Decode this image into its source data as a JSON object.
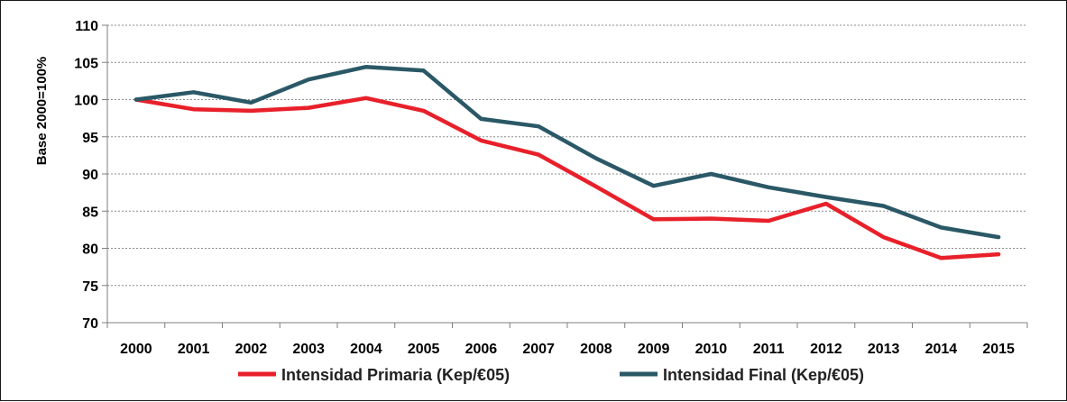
{
  "chart_data": {
    "type": "line",
    "title": "",
    "xlabel": "",
    "ylabel": "Base 2000=100%",
    "ylim": [
      70,
      110
    ],
    "yticks": [
      "70",
      "75",
      "80",
      "85",
      "90",
      "95",
      "100",
      "105",
      "110"
    ],
    "categories": [
      "2000",
      "2001",
      "2002",
      "2003",
      "2004",
      "2005",
      "2006",
      "2007",
      "2008",
      "2009",
      "2010",
      "2011",
      "2012",
      "2013",
      "2014",
      "2015"
    ],
    "grid": true,
    "legend_position": "bottom",
    "series": [
      {
        "name": "Intensidad Primaria (Kep/€05)",
        "color": "#e8202a",
        "values": [
          100.0,
          98.7,
          98.5,
          98.9,
          100.2,
          98.5,
          94.5,
          92.6,
          88.3,
          83.9,
          84.0,
          83.7,
          86.0,
          81.5,
          78.7,
          79.2
        ]
      },
      {
        "name": "Intensidad Final (Kep/€05)",
        "color": "#2a5866",
        "values": [
          100.0,
          101.0,
          99.6,
          102.7,
          104.4,
          103.9,
          97.4,
          96.4,
          92.1,
          88.4,
          90.0,
          88.2,
          86.9,
          85.7,
          82.8,
          81.5
        ]
      }
    ]
  }
}
